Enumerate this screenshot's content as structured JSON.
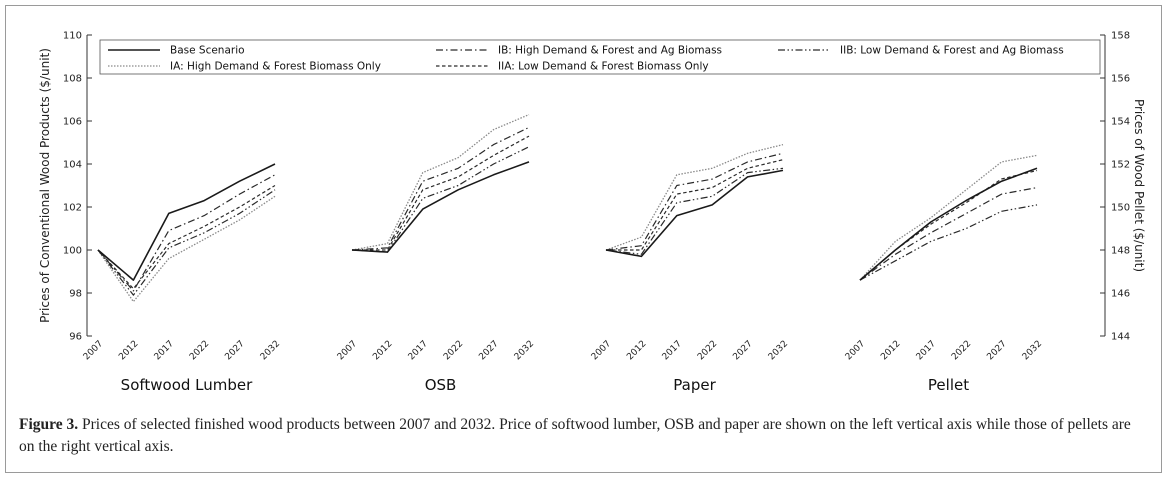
{
  "caption": {
    "label": "Figure 3.",
    "text": "Prices of selected finished wood products between 2007 and 2032. Price of softwood lumber, OSB and paper are shown on the left vertical axis while those of pellets are on the right vertical axis."
  },
  "chart_data": {
    "type": "line",
    "x": [
      "2007",
      "2012",
      "2017",
      "2022",
      "2027",
      "2032"
    ],
    "ylabel_left": "Prices of Conventional Wood Products ($/unit)",
    "ylabel_right": "Prices of Wood Pellet ($/unit)",
    "ylim_left": [
      96,
      110
    ],
    "yticks_left": [
      96,
      98,
      100,
      102,
      104,
      106,
      108,
      110
    ],
    "ylim_right": [
      144,
      158
    ],
    "yticks_right": [
      144,
      146,
      148,
      150,
      152,
      154,
      156,
      158
    ],
    "legend_position": "top",
    "legend": [
      {
        "key": "base",
        "label": "Base Scenario"
      },
      {
        "key": "IB",
        "label": "IB: High Demand & Forest and Ag Biomass"
      },
      {
        "key": "IIB",
        "label": "IIB: Low Demand & Forest and Ag Biomass"
      },
      {
        "key": "IA",
        "label": "IA: High Demand & Forest Biomass Only"
      },
      {
        "key": "IIA",
        "label": "IIA: Low Demand & Forest Biomass Only"
      }
    ],
    "panels": [
      {
        "title": "Softwood Lumber",
        "axis": "left",
        "series": [
          {
            "key": "base",
            "values": [
              100,
              98.6,
              101.7,
              102.3,
              103.2,
              104.0
            ]
          },
          {
            "key": "IA",
            "values": [
              100,
              97.6,
              99.6,
              100.5,
              101.4,
              102.5
            ]
          },
          {
            "key": "IB",
            "values": [
              100,
              98.1,
              100.9,
              101.6,
              102.6,
              103.5
            ]
          },
          {
            "key": "IIA",
            "values": [
              100,
              98.2,
              100.3,
              101.1,
              102.0,
              103.0
            ]
          },
          {
            "key": "IIB",
            "values": [
              100,
              97.9,
              100.1,
              100.8,
              101.7,
              102.8
            ]
          }
        ]
      },
      {
        "title": "OSB",
        "axis": "left",
        "series": [
          {
            "key": "base",
            "values": [
              100,
              99.9,
              101.9,
              102.8,
              103.5,
              104.1
            ]
          },
          {
            "key": "IA",
            "values": [
              100,
              100.3,
              103.6,
              104.3,
              105.6,
              106.3
            ]
          },
          {
            "key": "IB",
            "values": [
              100,
              100.1,
              103.2,
              103.8,
              104.9,
              105.7
            ]
          },
          {
            "key": "IIA",
            "values": [
              100,
              100.0,
              102.8,
              103.4,
              104.4,
              105.3
            ]
          },
          {
            "key": "IIB",
            "values": [
              100,
              99.9,
              102.4,
              103.0,
              104.0,
              104.8
            ]
          }
        ]
      },
      {
        "title": "Paper",
        "axis": "left",
        "series": [
          {
            "key": "base",
            "values": [
              100,
              99.7,
              101.6,
              102.1,
              103.4,
              103.7
            ]
          },
          {
            "key": "IA",
            "values": [
              100,
              100.6,
              103.5,
              103.8,
              104.5,
              104.9
            ]
          },
          {
            "key": "IB",
            "values": [
              100,
              100.2,
              103.0,
              103.3,
              104.1,
              104.5
            ]
          },
          {
            "key": "IIA",
            "values": [
              100,
              100.0,
              102.6,
              102.9,
              103.8,
              104.2
            ]
          },
          {
            "key": "IIB",
            "values": [
              100,
              99.8,
              102.2,
              102.5,
              103.6,
              103.8
            ]
          }
        ]
      },
      {
        "title": "Pellet",
        "axis": "right",
        "series": [
          {
            "key": "base",
            "values": [
              146.6,
              148.0,
              149.3,
              150.3,
              151.2,
              151.8
            ]
          },
          {
            "key": "IA",
            "values": [
              146.6,
              148.4,
              149.5,
              150.8,
              152.1,
              152.4
            ]
          },
          {
            "key": "IB",
            "values": [
              146.6,
              147.8,
              148.8,
              149.7,
              150.6,
              150.9
            ]
          },
          {
            "key": "IIA",
            "values": [
              146.6,
              148.0,
              149.2,
              150.2,
              151.3,
              151.7
            ]
          },
          {
            "key": "IIB",
            "values": [
              146.6,
              147.5,
              148.4,
              149.0,
              149.8,
              150.1
            ]
          }
        ]
      }
    ]
  }
}
